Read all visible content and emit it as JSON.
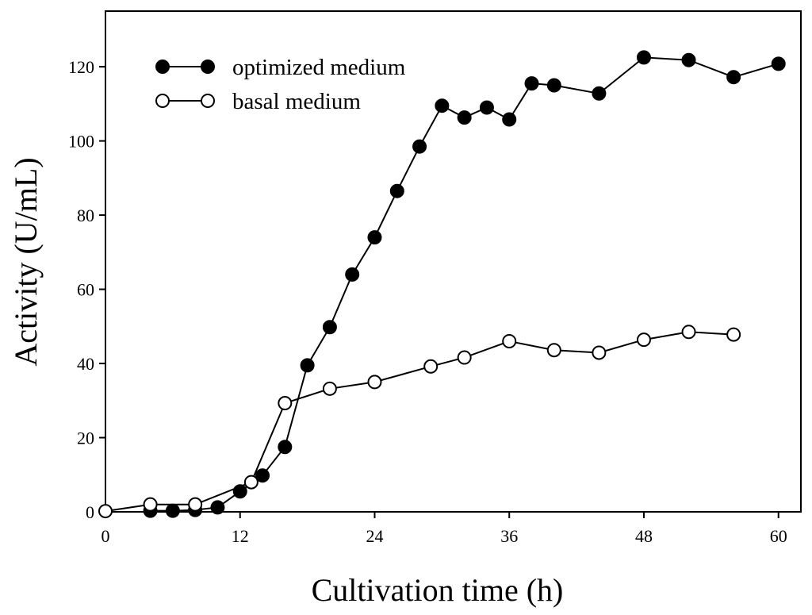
{
  "chart_data": {
    "type": "line",
    "xlabel": "Cultivation time (h)",
    "ylabel": "Activity (U/mL)",
    "xlim": [
      0,
      62
    ],
    "ylim": [
      0,
      135
    ],
    "xticks": [
      0,
      12,
      24,
      36,
      48,
      60
    ],
    "yticks": [
      0,
      20,
      40,
      60,
      80,
      100,
      120
    ],
    "grid": false,
    "legend_position": "top-left",
    "series": [
      {
        "name": "optimized medium",
        "marker": "filled-circle",
        "color": "#000000",
        "x": [
          4,
          6,
          8,
          10,
          12,
          14,
          16,
          18,
          20,
          22,
          24,
          26,
          28,
          30,
          32,
          34,
          36,
          38,
          40,
          44,
          48,
          52,
          56,
          60
        ],
        "y": [
          0.3,
          0.3,
          0.5,
          1.2,
          5.5,
          9.8,
          17.5,
          39.5,
          49.8,
          64.0,
          74.0,
          86.5,
          98.5,
          109.5,
          106.3,
          109.0,
          105.8,
          115.5,
          115.0,
          112.8,
          122.5,
          121.8,
          117.2,
          120.8
        ]
      },
      {
        "name": "basal medium",
        "marker": "open-circle",
        "color": "#000000",
        "x": [
          0,
          4,
          8,
          13,
          16,
          20,
          24,
          29,
          32,
          36,
          40,
          44,
          48,
          52,
          56
        ],
        "y": [
          0.2,
          2.0,
          2.0,
          8.0,
          29.3,
          33.2,
          35.0,
          39.2,
          41.6,
          46.0,
          43.6,
          42.9,
          46.4,
          48.5,
          47.8
        ]
      }
    ]
  }
}
